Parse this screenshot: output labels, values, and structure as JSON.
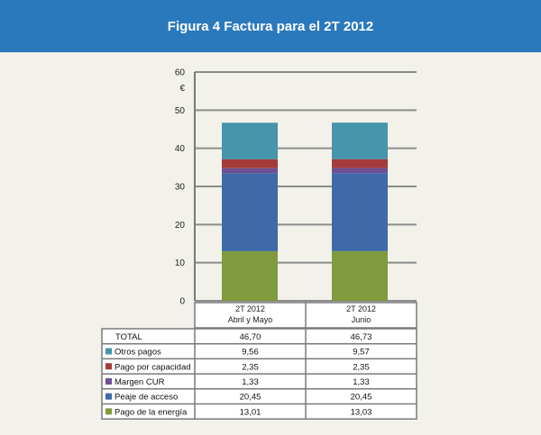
{
  "header": {
    "title": "Figura 4 Factura para el 2T 2012"
  },
  "chart_data": {
    "type": "bar",
    "stacked": true,
    "categories": [
      {
        "line1": "2T 2012",
        "line2": "Abril y Mayo"
      },
      {
        "line1": "2T 2012",
        "line2": "Junio"
      }
    ],
    "ylim": [
      0,
      60
    ],
    "yticks": [
      0,
      10,
      20,
      30,
      40,
      50,
      60
    ],
    "ylabel": "€",
    "grid": true,
    "series": [
      {
        "name": "Pago de la energía",
        "values": [
          13.01,
          13.03
        ],
        "labels": [
          "13,01",
          "13,03"
        ],
        "color": "#7f9b3d"
      },
      {
        "name": "Peaje de acceso",
        "values": [
          20.45,
          20.45
        ],
        "labels": [
          "20,45",
          "20,45"
        ],
        "color": "#3f6aa8"
      },
      {
        "name": "Margen CUR",
        "values": [
          1.33,
          1.33
        ],
        "labels": [
          "1,33",
          "1,33"
        ],
        "color": "#6d4f96"
      },
      {
        "name": "Pago por capacidad",
        "values": [
          2.35,
          2.35
        ],
        "labels": [
          "2,35",
          "2,35"
        ],
        "color": "#a33b3b"
      },
      {
        "name": "Otros pagos",
        "values": [
          9.56,
          9.57
        ],
        "labels": [
          "9,56",
          "9,57"
        ],
        "color": "#4695aa"
      }
    ],
    "total": {
      "name": "TOTAL",
      "values": [
        46.7,
        46.73
      ],
      "labels": [
        "46,70",
        "46,73"
      ]
    }
  }
}
